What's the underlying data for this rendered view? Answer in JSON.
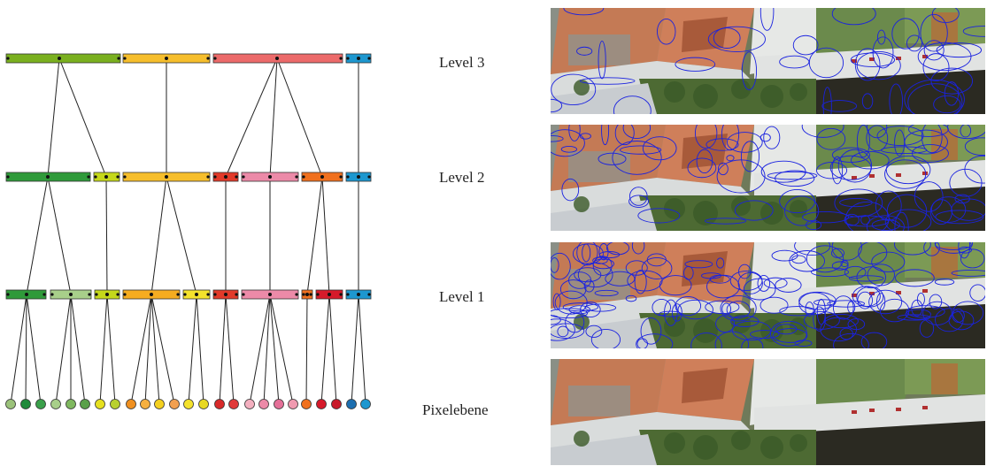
{
  "levels": [
    {
      "label": "Level 3"
    },
    {
      "label": "Level 2"
    },
    {
      "label": "Level 1"
    },
    {
      "label": "Pixelebene"
    }
  ]
}
